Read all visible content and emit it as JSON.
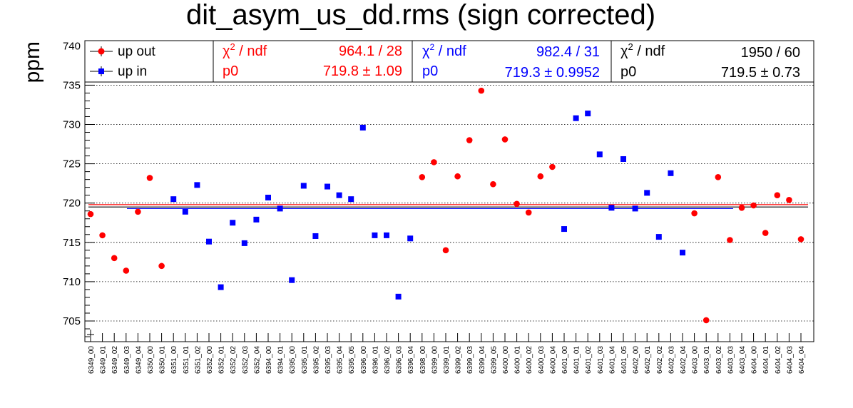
{
  "chart_data": {
    "type": "scatter",
    "title": "dit_asym_us_dd.rms (sign corrected)",
    "ylabel": "ppm",
    "ylim": [
      702.5,
      736.5
    ],
    "yticks": [
      705,
      710,
      715,
      720,
      725,
      730,
      735,
      740
    ],
    "grid": "horizontal dotted",
    "legend_position": "top-left",
    "categories": [
      "6349_00",
      "6349_01",
      "6349_02",
      "6349_03",
      "6349_04",
      "6350_00",
      "6350_01",
      "6351_00",
      "6351_01",
      "6351_02",
      "6352_00",
      "6352_01",
      "6352_02",
      "6352_03",
      "6352_04",
      "6394_00",
      "6394_01",
      "6395_00",
      "6395_01",
      "6395_02",
      "6395_03",
      "6395_04",
      "6395_05",
      "6396_00",
      "6396_01",
      "6396_02",
      "6396_03",
      "6396_04",
      "6398_00",
      "6399_00",
      "6399_01",
      "6399_02",
      "6399_03",
      "6399_04",
      "6399_05",
      "6400_00",
      "6400_01",
      "6400_02",
      "6400_03",
      "6400_04",
      "6401_00",
      "6401_01",
      "6401_02",
      "6401_03",
      "6401_04",
      "6401_05",
      "6402_00",
      "6402_01",
      "6402_02",
      "6402_03",
      "6402_04",
      "6403_00",
      "6403_01",
      "6403_02",
      "6403_03",
      "6403_04",
      "6404_00",
      "6404_01",
      "6404_02",
      "6404_03",
      "6404_04"
    ],
    "series": [
      {
        "name": "up out",
        "color": "#ff0000",
        "marker": "circle",
        "points": [
          [
            "6349_00",
            718.6
          ],
          [
            "6349_01",
            715.9
          ],
          [
            "6349_02",
            713.0
          ],
          [
            "6349_03",
            711.4
          ],
          [
            "6349_04",
            718.9
          ],
          [
            "6350_00",
            723.2
          ],
          [
            "6350_01",
            712.0
          ],
          [
            "6398_00",
            723.3
          ],
          [
            "6399_00",
            725.2
          ],
          [
            "6399_01",
            714.0
          ],
          [
            "6399_02",
            723.4
          ],
          [
            "6399_03",
            728.0
          ],
          [
            "6399_04",
            734.3
          ],
          [
            "6399_05",
            722.4
          ],
          [
            "6400_00",
            728.1
          ],
          [
            "6400_01",
            719.9
          ],
          [
            "6400_02",
            718.8
          ],
          [
            "6400_03",
            723.4
          ],
          [
            "6400_04",
            724.6
          ],
          [
            "6403_00",
            718.7
          ],
          [
            "6403_01",
            705.1
          ],
          [
            "6403_02",
            723.3
          ],
          [
            "6403_03",
            715.3
          ],
          [
            "6403_04",
            719.4
          ],
          [
            "6404_00",
            719.7
          ],
          [
            "6404_01",
            716.2
          ],
          [
            "6404_02",
            721.0
          ],
          [
            "6404_03",
            720.4
          ],
          [
            "6404_04",
            715.4
          ]
        ],
        "fit": {
          "label": "p0",
          "value": "719.8",
          "error": "1.09",
          "chi2_ndf": "964.1 / 28",
          "y": 719.8
        }
      },
      {
        "name": "up in",
        "color": "#0000ff",
        "marker": "square",
        "points": [
          [
            "6351_00",
            720.5
          ],
          [
            "6351_01",
            718.9
          ],
          [
            "6351_02",
            722.3
          ],
          [
            "6352_00",
            715.1
          ],
          [
            "6352_01",
            709.3
          ],
          [
            "6352_02",
            717.5
          ],
          [
            "6352_03",
            714.9
          ],
          [
            "6352_04",
            717.9
          ],
          [
            "6394_00",
            720.7
          ],
          [
            "6394_01",
            719.3
          ],
          [
            "6395_00",
            710.2
          ],
          [
            "6395_01",
            722.2
          ],
          [
            "6395_02",
            715.8
          ],
          [
            "6395_03",
            722.1
          ],
          [
            "6395_04",
            721.0
          ],
          [
            "6395_05",
            720.5
          ],
          [
            "6396_00",
            729.6
          ],
          [
            "6396_01",
            715.9
          ],
          [
            "6396_02",
            715.9
          ],
          [
            "6396_03",
            708.1
          ],
          [
            "6396_04",
            715.5
          ],
          [
            "6401_00",
            716.7
          ],
          [
            "6401_01",
            730.8
          ],
          [
            "6401_02",
            731.4
          ],
          [
            "6401_03",
            726.2
          ],
          [
            "6401_04",
            719.4
          ],
          [
            "6401_05",
            725.6
          ],
          [
            "6402_00",
            719.3
          ],
          [
            "6402_01",
            721.3
          ],
          [
            "6402_02",
            715.7
          ],
          [
            "6402_03",
            723.8
          ],
          [
            "6402_04",
            713.7
          ]
        ],
        "fit": {
          "label": "p0",
          "value": "719.3",
          "error": "0.9952",
          "chi2_ndf": "982.4 / 31",
          "y": 719.3
        }
      }
    ],
    "combined_fit": {
      "label": "p0",
      "value": "719.5",
      "error": "0.73",
      "chi2_ndf": "1950 / 60",
      "y": 719.5,
      "color": "#000000"
    }
  },
  "stats": {
    "chi2_label": "ndf",
    "pm": "±"
  }
}
